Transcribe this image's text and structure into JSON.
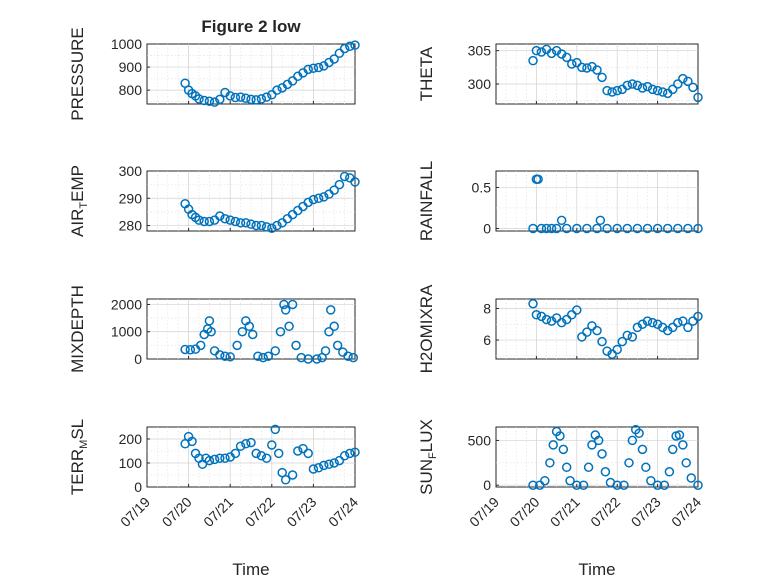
{
  "figure": {
    "title": "Figure 2 low",
    "marker_color": "#0072BD",
    "background": "#ffffff"
  },
  "chart_data": [
    {
      "type": "scatter",
      "title": "Figure 2 low",
      "ylabel": "PRESSURE",
      "xlabel": "",
      "xlim": [
        "07/19",
        "07/24"
      ],
      "xticks": [],
      "ylim": [
        740,
        1000
      ],
      "yticks": [
        800,
        900,
        1000
      ],
      "grid": true,
      "x": [
        "07/19 22:00",
        "07/20 00:00",
        "07/20 02:00",
        "07/20 04:00",
        "07/20 06:00",
        "07/20 09:00",
        "07/20 12:00",
        "07/20 15:00",
        "07/20 18:00",
        "07/20 21:00",
        "07/21 00:00",
        "07/21 03:00",
        "07/21 06:00",
        "07/21 09:00",
        "07/21 12:00",
        "07/21 15:00",
        "07/21 18:00",
        "07/21 21:00",
        "07/22 00:00",
        "07/22 03:00",
        "07/22 06:00",
        "07/22 09:00",
        "07/22 12:00",
        "07/22 15:00",
        "07/22 18:00",
        "07/22 21:00",
        "07/23 00:00",
        "07/23 03:00",
        "07/23 06:00",
        "07/23 09:00",
        "07/23 12:00",
        "07/23 15:00",
        "07/23 18:00",
        "07/23 21:00",
        "07/24 00:00"
      ],
      "y": [
        830,
        800,
        785,
        775,
        762,
        755,
        752,
        748,
        760,
        790,
        775,
        768,
        770,
        765,
        760,
        758,
        762,
        770,
        780,
        800,
        810,
        825,
        840,
        860,
        875,
        890,
        895,
        898,
        905,
        920,
        935,
        960,
        980,
        990,
        995
      ]
    },
    {
      "type": "scatter",
      "ylabel": "THETA",
      "xlabel": "",
      "xlim": [
        "07/19",
        "07/24"
      ],
      "xticks": [],
      "ylim": [
        297,
        306
      ],
      "yticks": [
        300,
        305
      ],
      "grid": true,
      "x": [
        "07/19 22:00",
        "07/20 00:00",
        "07/20 03:00",
        "07/20 06:00",
        "07/20 09:00",
        "07/20 12:00",
        "07/20 15:00",
        "07/20 18:00",
        "07/20 21:00",
        "07/21 00:00",
        "07/21 03:00",
        "07/21 06:00",
        "07/21 09:00",
        "07/21 12:00",
        "07/21 15:00",
        "07/21 18:00",
        "07/21 21:00",
        "07/22 00:00",
        "07/22 03:00",
        "07/22 06:00",
        "07/22 09:00",
        "07/22 12:00",
        "07/22 15:00",
        "07/22 18:00",
        "07/22 21:00",
        "07/23 00:00",
        "07/23 03:00",
        "07/23 06:00",
        "07/23 09:00",
        "07/23 12:00",
        "07/23 15:00",
        "07/23 18:00",
        "07/23 21:00",
        "07/24 00:00"
      ],
      "y": [
        303.5,
        305,
        304.8,
        305.2,
        304.6,
        305,
        304.5,
        304,
        303,
        303.2,
        302.5,
        302.4,
        302.6,
        302.1,
        301,
        299,
        298.8,
        299,
        299.2,
        299.8,
        300,
        299.8,
        299.4,
        299.6,
        299.2,
        299,
        298.8,
        298.6,
        299.2,
        300,
        300.8,
        300.4,
        299.5,
        298
      ]
    },
    {
      "type": "scatter",
      "ylabel": "AIR_TEMP",
      "xlabel": "",
      "xlim": [
        "07/19",
        "07/24"
      ],
      "xticks": [],
      "ylim": [
        278,
        300
      ],
      "yticks": [
        280,
        290,
        300
      ],
      "grid": true,
      "x": [
        "07/19 22:00",
        "07/20 00:00",
        "07/20 02:00",
        "07/20 04:00",
        "07/20 06:00",
        "07/20 09:00",
        "07/20 12:00",
        "07/20 15:00",
        "07/20 18:00",
        "07/20 21:00",
        "07/21 00:00",
        "07/21 03:00",
        "07/21 06:00",
        "07/21 09:00",
        "07/21 12:00",
        "07/21 15:00",
        "07/21 18:00",
        "07/21 21:00",
        "07/22 00:00",
        "07/22 03:00",
        "07/22 06:00",
        "07/22 09:00",
        "07/22 12:00",
        "07/22 15:00",
        "07/22 18:00",
        "07/22 21:00",
        "07/23 00:00",
        "07/23 03:00",
        "07/23 06:00",
        "07/23 09:00",
        "07/23 12:00",
        "07/23 15:00",
        "07/23 18:00",
        "07/23 21:00",
        "07/24 00:00"
      ],
      "y": [
        288,
        286,
        284,
        283,
        282,
        281.5,
        281.5,
        282,
        283.5,
        282.5,
        282,
        281.5,
        281,
        281,
        280.5,
        280,
        280,
        279.5,
        279,
        280,
        281,
        282.5,
        284,
        285.5,
        287,
        288.5,
        289.5,
        290,
        290.5,
        291.5,
        293,
        295,
        298,
        297.5,
        296
      ]
    },
    {
      "type": "scatter",
      "ylabel": "RAINFALL",
      "xlabel": "",
      "xlim": [
        "07/19",
        "07/24"
      ],
      "xticks": [],
      "ylim": [
        -0.03,
        0.7
      ],
      "yticks": [
        0,
        0.5
      ],
      "ytick_labels": [
        "0",
        "0.5"
      ],
      "grid": true,
      "x": [
        "07/19 22:00",
        "07/20 00:00",
        "07/20 01:00",
        "07/20 03:00",
        "07/20 06:00",
        "07/20 09:00",
        "07/20 12:00",
        "07/20 18:00",
        "07/21 00:00",
        "07/21 06:00",
        "07/21 12:00",
        "07/21 18:00",
        "07/22 00:00",
        "07/22 06:00",
        "07/22 12:00",
        "07/22 18:00",
        "07/23 00:00",
        "07/23 06:00",
        "07/23 12:00",
        "07/23 18:00",
        "07/24 00:00",
        "07/20 15:00",
        "07/21 14:00"
      ],
      "y": [
        0,
        0.6,
        0.6,
        0,
        0,
        0,
        0,
        0,
        0,
        0,
        0,
        0,
        0,
        0,
        0,
        0,
        0,
        0,
        0,
        0,
        0,
        0.1,
        0.1
      ]
    },
    {
      "type": "scatter",
      "ylabel": "MIXDEPTH",
      "xlabel": "",
      "xlim": [
        "07/19",
        "07/24"
      ],
      "xticks": [],
      "ylim": [
        0,
        2200
      ],
      "yticks": [
        0,
        1000,
        2000
      ],
      "grid": true,
      "x": [
        "07/19 22:00",
        "07/20 01:00",
        "07/20 04:00",
        "07/20 07:00",
        "07/20 09:00",
        "07/20 11:00",
        "07/20 12:00",
        "07/20 13:00",
        "07/20 15:00",
        "07/20 18:00",
        "07/20 21:00",
        "07/21 00:00",
        "07/21 04:00",
        "07/21 07:00",
        "07/21 09:00",
        "07/21 11:00",
        "07/21 13:00",
        "07/21 16:00",
        "07/21 19:00",
        "07/21 22:00",
        "07/22 02:00",
        "07/22 05:00",
        "07/22 07:00",
        "07/22 08:00",
        "07/22 10:00",
        "07/22 12:00",
        "07/22 14:00",
        "07/22 17:00",
        "07/22 21:00",
        "07/23 02:00",
        "07/23 05:00",
        "07/23 07:00",
        "07/23 09:00",
        "07/23 10:00",
        "07/23 12:00",
        "07/23 14:00",
        "07/23 17:00",
        "07/23 20:00",
        "07/23 23:00"
      ],
      "y": [
        350,
        340,
        360,
        500,
        900,
        1100,
        1400,
        1000,
        300,
        150,
        100,
        80,
        500,
        1000,
        1400,
        1200,
        900,
        100,
        50,
        100,
        300,
        1000,
        2000,
        1800,
        1200,
        2000,
        500,
        50,
        0,
        0,
        50,
        300,
        1000,
        1800,
        1200,
        500,
        250,
        100,
        50
      ]
    },
    {
      "type": "scatter",
      "ylabel": "H2OMIXRA",
      "xlabel": "",
      "xlim": [
        "07/19",
        "07/24"
      ],
      "xticks": [],
      "ylim": [
        4.8,
        8.6
      ],
      "yticks": [
        6,
        8
      ],
      "grid": true,
      "x": [
        "07/19 22:00",
        "07/20 00:00",
        "07/20 03:00",
        "07/20 06:00",
        "07/20 09:00",
        "07/20 12:00",
        "07/20 15:00",
        "07/20 18:00",
        "07/20 21:00",
        "07/21 00:00",
        "07/21 03:00",
        "07/21 06:00",
        "07/21 09:00",
        "07/21 12:00",
        "07/21 15:00",
        "07/21 18:00",
        "07/21 21:00",
        "07/22 00:00",
        "07/22 03:00",
        "07/22 06:00",
        "07/22 09:00",
        "07/22 12:00",
        "07/22 15:00",
        "07/22 18:00",
        "07/22 21:00",
        "07/23 00:00",
        "07/23 03:00",
        "07/23 06:00",
        "07/23 09:00",
        "07/23 12:00",
        "07/23 15:00",
        "07/23 18:00",
        "07/23 21:00",
        "07/24 00:00"
      ],
      "y": [
        8.3,
        7.6,
        7.5,
        7.3,
        7.2,
        7.4,
        7.1,
        7.3,
        7.6,
        7.9,
        6.2,
        6.5,
        6.9,
        6.6,
        5.9,
        5.3,
        5.1,
        5.4,
        5.9,
        6.3,
        6.2,
        6.8,
        7.0,
        7.2,
        7.1,
        7.0,
        6.8,
        6.6,
        6.8,
        7.1,
        7.2,
        6.8,
        7.2,
        7.5
      ]
    },
    {
      "type": "scatter",
      "ylabel": "TERR_MSL",
      "xlabel": "Time",
      "xlim": [
        "07/19",
        "07/24"
      ],
      "xticks": [
        "07/19",
        "07/20",
        "07/21",
        "07/22",
        "07/23",
        "07/24"
      ],
      "ylim": [
        0,
        250
      ],
      "yticks": [
        0,
        100,
        200
      ],
      "grid": true,
      "x": [
        "07/19 22:00",
        "07/20 00:00",
        "07/20 02:00",
        "07/20 04:00",
        "07/20 06:00",
        "07/20 08:00",
        "07/20 10:00",
        "07/20 12:00",
        "07/20 15:00",
        "07/20 18:00",
        "07/20 21:00",
        "07/21 00:00",
        "07/21 03:00",
        "07/21 06:00",
        "07/21 09:00",
        "07/21 12:00",
        "07/21 15:00",
        "07/21 18:00",
        "07/21 21:00",
        "07/22 00:00",
        "07/22 02:00",
        "07/22 04:00",
        "07/22 06:00",
        "07/22 08:00",
        "07/22 12:00",
        "07/22 15:00",
        "07/22 18:00",
        "07/22 21:00",
        "07/23 00:00",
        "07/23 03:00",
        "07/23 06:00",
        "07/23 09:00",
        "07/23 12:00",
        "07/23 15:00",
        "07/23 18:00",
        "07/23 21:00",
        "07/24 00:00"
      ],
      "y": [
        180,
        210,
        190,
        140,
        120,
        95,
        120,
        110,
        115,
        120,
        120,
        125,
        140,
        170,
        180,
        185,
        140,
        130,
        120,
        175,
        240,
        140,
        60,
        30,
        50,
        150,
        160,
        140,
        75,
        80,
        90,
        95,
        100,
        110,
        130,
        140,
        145
      ]
    },
    {
      "type": "scatter",
      "ylabel": "SUN_FLUX",
      "xlabel": "Time",
      "xlim": [
        "07/19",
        "07/24"
      ],
      "xticks": [
        "07/19",
        "07/20",
        "07/21",
        "07/22",
        "07/23",
        "07/24"
      ],
      "ylim": [
        -20,
        650
      ],
      "yticks": [
        0,
        500
      ],
      "grid": true,
      "x": [
        "07/19 22:00",
        "07/20 02:00",
        "07/20 05:00",
        "07/20 08:00",
        "07/20 10:00",
        "07/20 12:00",
        "07/20 14:00",
        "07/20 16:00",
        "07/20 18:00",
        "07/20 20:00",
        "07/21 00:00",
        "07/21 04:00",
        "07/21 07:00",
        "07/21 09:00",
        "07/21 11:00",
        "07/21 13:00",
        "07/21 15:00",
        "07/21 17:00",
        "07/21 20:00",
        "07/22 00:00",
        "07/22 04:00",
        "07/22 07:00",
        "07/22 09:00",
        "07/22 11:00",
        "07/22 13:00",
        "07/22 15:00",
        "07/22 17:00",
        "07/22 20:00",
        "07/23 00:00",
        "07/23 04:00",
        "07/23 07:00",
        "07/23 09:00",
        "07/23 11:00",
        "07/23 13:00",
        "07/23 15:00",
        "07/23 17:00",
        "07/23 20:00",
        "07/24 00:00"
      ],
      "y": [
        0,
        0,
        50,
        250,
        450,
        600,
        550,
        400,
        200,
        50,
        0,
        0,
        200,
        450,
        560,
        500,
        350,
        150,
        30,
        0,
        0,
        250,
        500,
        620,
        580,
        400,
        200,
        50,
        0,
        0,
        150,
        400,
        550,
        560,
        450,
        250,
        80,
        0
      ]
    }
  ]
}
